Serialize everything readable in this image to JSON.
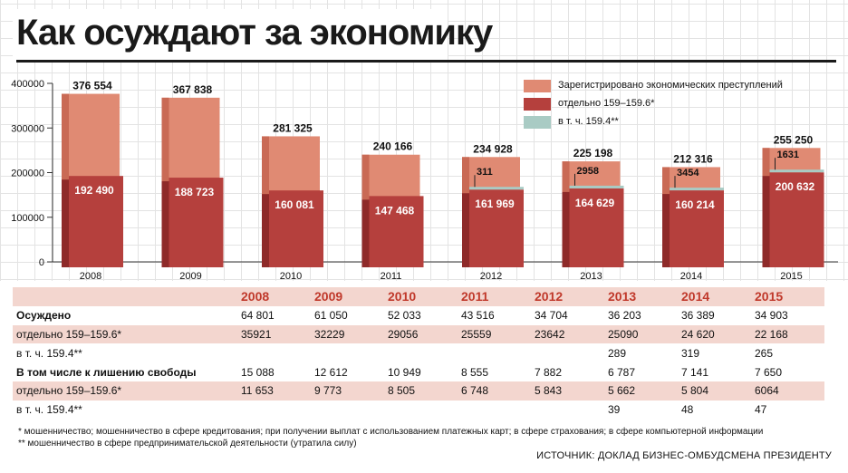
{
  "title": "Как осуждают за экономику",
  "legend": [
    {
      "label": "Зарегистрировано экономических преступлений",
      "color": "#e08a73"
    },
    {
      "label": "отдельно 159–159.6*",
      "color": "#b5403d"
    },
    {
      "label": "в т. ч. 159.4**",
      "color": "#a9cbc4"
    }
  ],
  "colors": {
    "registered": "#e08a73",
    "registered_side": "#c96a55",
    "separate": "#b5403d",
    "separate_side": "#8e2a29",
    "incl": "#a9cbc4",
    "accent": "#c0392b"
  },
  "chart_data": {
    "type": "bar",
    "categories": [
      "2008",
      "2009",
      "2010",
      "2011",
      "2012",
      "2013",
      "2014",
      "2015"
    ],
    "series": [
      {
        "name": "Зарегистрировано экономических преступлений",
        "values": [
          376554,
          367838,
          281325,
          240166,
          234928,
          225198,
          212316,
          255250
        ],
        "labels": [
          "376 554",
          "367 838",
          "281 325",
          "240 166",
          "234 928",
          "225 198",
          "212 316",
          "255 250"
        ]
      },
      {
        "name": "отдельно 159–159.6*",
        "values": [
          192490,
          188723,
          160081,
          147468,
          161969,
          164629,
          160214,
          200632
        ],
        "labels": [
          "192 490",
          "188 723",
          "160 081",
          "147 468",
          "161 969",
          "164 629",
          "160 214",
          "200 632"
        ]
      },
      {
        "name": "в т. ч. 159.4**",
        "values": [
          null,
          null,
          null,
          null,
          311,
          2958,
          3454,
          1631
        ],
        "labels": [
          "",
          "",
          "",
          "",
          "311",
          "2958",
          "3454",
          "1631"
        ]
      }
    ],
    "yticks": [
      "400000",
      "300000",
      "200000",
      "100000",
      "0"
    ],
    "ylim": [
      0,
      400000
    ]
  },
  "table": {
    "years": [
      "2008",
      "2009",
      "2010",
      "2011",
      "2012",
      "2013",
      "2014",
      "2015"
    ],
    "rows": [
      {
        "label": "Осуждено",
        "values": [
          "64 801",
          "61 050",
          "52 033",
          "43 516",
          "34 704",
          "36 203",
          "36 389",
          "34 903"
        ]
      },
      {
        "label": "отдельно 159–159.6*",
        "values": [
          "35921",
          "32229",
          "29056",
          "25559",
          "23642",
          "25090",
          "24 620",
          "22 168"
        ]
      },
      {
        "label": "в т. ч. 159.4**",
        "values": [
          "",
          "",
          "",
          "",
          "",
          "289",
          "319",
          "265"
        ]
      },
      {
        "label": "В том числе к лишению свободы",
        "values": [
          "15 088",
          "12 612",
          "10 949",
          "8 555",
          "7 882",
          "6 787",
          "7 141",
          "7 650"
        ]
      },
      {
        "label": "отдельно 159–159.6*",
        "values": [
          "11 653",
          "9 773",
          "8 505",
          "6 748",
          "5 843",
          "5 662",
          "5 804",
          "6064"
        ]
      },
      {
        "label": "в т. ч. 159.4**",
        "values": [
          "",
          "",
          "",
          "",
          "",
          "39",
          "48",
          "47"
        ]
      }
    ]
  },
  "footnotes": [
    "* мошенничество; мошенничество в сфере кредитования; при получении выплат с использованием платежных карт; в сфере страхования; в сфере компьютерной информации",
    "** мошенничество в сфере предпринимательской деятельности (утратила силу)"
  ],
  "source": "ИСТОЧНИК: ДОКЛАД БИЗНЕС-ОМБУДСМЕНА ПРЕЗИДЕНТУ"
}
